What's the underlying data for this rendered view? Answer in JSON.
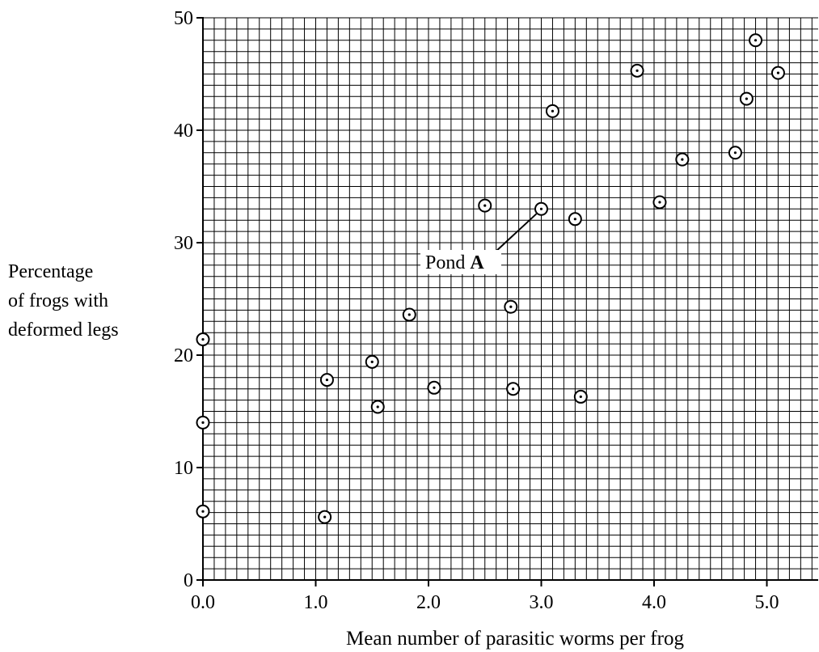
{
  "chart_data": {
    "type": "scatter",
    "xlabel": "Mean number of parasitic worms per frog",
    "ylabel_lines": [
      "Percentage",
      "of frogs with",
      "deformed legs"
    ],
    "xlim": [
      0,
      5.45
    ],
    "ylim": [
      0,
      50
    ],
    "x_ticks": [
      "0.0",
      "1.0",
      "2.0",
      "3.0",
      "4.0",
      "5.0"
    ],
    "y_ticks": [
      "0",
      "10",
      "20",
      "30",
      "40",
      "50"
    ],
    "grid": true,
    "annotation": {
      "text": "Pond",
      "bold": "A",
      "point_index": 12
    },
    "points": [
      {
        "x": 0.0,
        "y": 21.4
      },
      {
        "x": 0.0,
        "y": 14.0
      },
      {
        "x": 0.0,
        "y": 6.1
      },
      {
        "x": 1.08,
        "y": 5.6
      },
      {
        "x": 1.1,
        "y": 17.8
      },
      {
        "x": 1.5,
        "y": 19.4
      },
      {
        "x": 1.55,
        "y": 15.4
      },
      {
        "x": 1.83,
        "y": 23.6
      },
      {
        "x": 2.05,
        "y": 17.1
      },
      {
        "x": 2.5,
        "y": 33.3
      },
      {
        "x": 2.73,
        "y": 24.3
      },
      {
        "x": 2.75,
        "y": 17.0
      },
      {
        "x": 3.0,
        "y": 33.0
      },
      {
        "x": 3.1,
        "y": 41.7
      },
      {
        "x": 3.3,
        "y": 32.1
      },
      {
        "x": 3.35,
        "y": 16.3
      },
      {
        "x": 3.85,
        "y": 45.3
      },
      {
        "x": 4.05,
        "y": 33.6
      },
      {
        "x": 4.25,
        "y": 37.4
      },
      {
        "x": 4.72,
        "y": 38.0
      },
      {
        "x": 4.82,
        "y": 42.8
      },
      {
        "x": 4.9,
        "y": 48.0
      },
      {
        "x": 5.1,
        "y": 45.1
      }
    ]
  }
}
